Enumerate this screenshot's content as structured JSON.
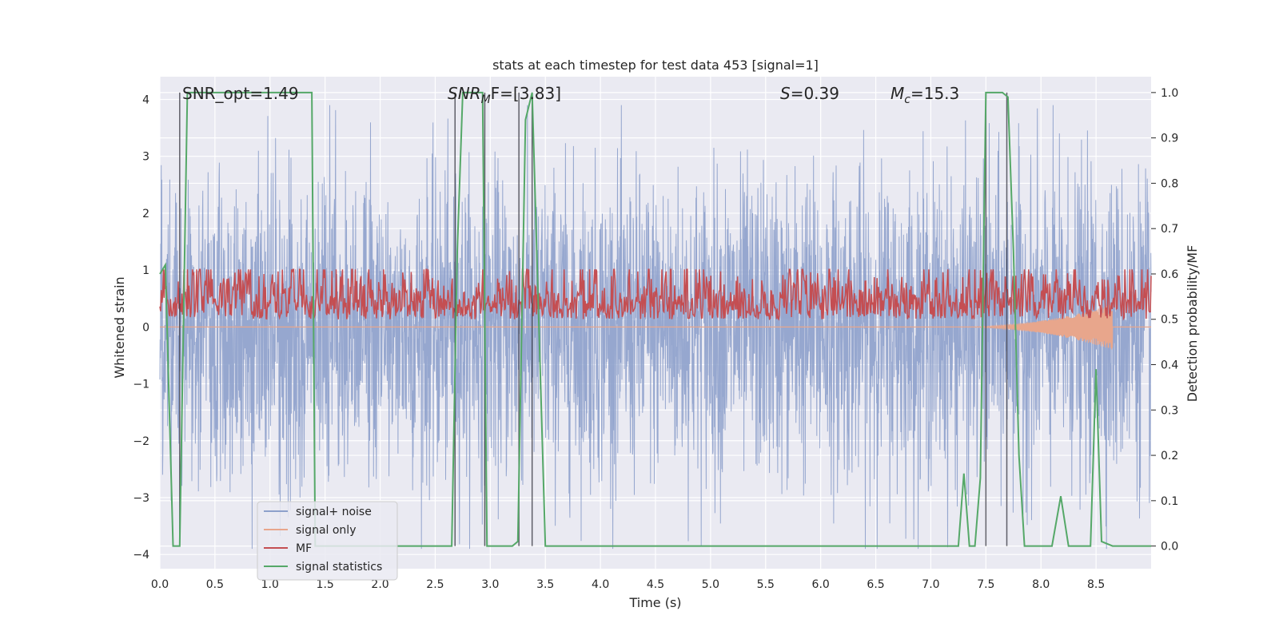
{
  "chart_data": {
    "type": "line",
    "title": "stats at each timestep for test data 453 [signal=1]",
    "xlabel": "Time (s)",
    "ylabel_left": "Whitened strain",
    "ylabel_right": "Detection probability/MF",
    "xlim": [
      0.0,
      9.0
    ],
    "ylim_left": [
      -4.25,
      4.4
    ],
    "ylim_right": [
      -0.05,
      1.035
    ],
    "x_ticks": [
      "0.0",
      "0.5",
      "1.0",
      "1.5",
      "2.0",
      "2.5",
      "3.0",
      "3.5",
      "4.0",
      "4.5",
      "5.0",
      "5.5",
      "6.0",
      "6.5",
      "7.0",
      "7.5",
      "8.0",
      "8.5"
    ],
    "x_tick_values": [
      0.0,
      0.5,
      1.0,
      1.5,
      2.0,
      2.5,
      3.0,
      3.5,
      4.0,
      4.5,
      5.0,
      5.5,
      6.0,
      6.5,
      7.0,
      7.5,
      8.0,
      8.5
    ],
    "y_left_ticks": [
      "4",
      "3",
      "2",
      "1",
      "0",
      "−1",
      "−2",
      "−3",
      "−4"
    ],
    "y_left_tick_values": [
      4,
      3,
      2,
      1,
      0,
      -1,
      -2,
      -3,
      -4
    ],
    "y_right_ticks": [
      "1.0",
      "0.9",
      "0.8",
      "0.7",
      "0.6",
      "0.5",
      "0.4",
      "0.3",
      "0.2",
      "0.1",
      "0.0"
    ],
    "y_right_tick_values": [
      1.0,
      0.9,
      0.8,
      0.7,
      0.6,
      0.5,
      0.4,
      0.3,
      0.2,
      0.1,
      0.0
    ],
    "grid": true,
    "legend_position": "bottom-left",
    "annotations": {
      "snr_opt": "SNR_opt=1.49",
      "snr_mf_italic": "SNR",
      "snr_mf_sub": "M",
      "snr_mf_rest": "F=[3.83]",
      "s_italic": "S",
      "s_rest": "=0.39",
      "mc_italic": "M",
      "mc_sub": "c",
      "mc_rest": "=15.3"
    },
    "series": [
      {
        "name": "signal+ noise",
        "color": "#8da0cb",
        "axis": "left",
        "style": "noise",
        "amplitude": 2.4
      },
      {
        "name": "signal only",
        "color": "#e8a68c",
        "axis": "left",
        "style": "chirp",
        "x_start": 7.2,
        "x_end": 8.65,
        "max_amplitude": 0.4
      },
      {
        "name": "MF",
        "color": "#c44e52",
        "axis": "right",
        "style": "noise",
        "baseline": 0.5,
        "amplitude": 0.12
      },
      {
        "name": "signal statistics",
        "color": "#55a868",
        "axis": "right",
        "x": [
          0.0,
          0.05,
          0.12,
          0.18,
          0.25,
          1.38,
          1.41,
          1.5,
          2.0,
          2.15,
          2.2,
          2.6,
          2.65,
          2.7,
          2.75,
          2.93,
          2.97,
          3.2,
          3.25,
          3.32,
          3.38,
          3.5,
          7.25,
          7.3,
          7.35,
          7.4,
          7.45,
          7.5,
          7.55,
          7.6,
          7.65,
          7.7,
          7.75,
          7.8,
          7.85,
          8.1,
          8.18,
          8.25,
          8.45,
          8.5,
          8.55,
          8.65,
          9.0
        ],
        "y": [
          0.6,
          0.62,
          0.0,
          0.0,
          1.0,
          1.0,
          0.0,
          0.0,
          0.0,
          0.0,
          0.0,
          0.0,
          0.0,
          0.65,
          1.0,
          1.0,
          0.0,
          0.0,
          0.01,
          0.94,
          1.0,
          0.0,
          0.0,
          0.16,
          0.0,
          0.0,
          0.15,
          1.0,
          1.0,
          1.0,
          1.0,
          0.99,
          0.65,
          0.2,
          0.0,
          0.0,
          0.11,
          0.0,
          0.0,
          0.39,
          0.01,
          0.0,
          0.0
        ]
      }
    ],
    "vertical_lines": [
      0.18,
      2.68,
      2.95,
      3.26,
      3.38,
      7.5,
      7.69
    ]
  },
  "legend": {
    "items": [
      {
        "label": "signal+ noise",
        "color": "#8da0cb"
      },
      {
        "label": "signal only",
        "color": "#e8a68c"
      },
      {
        "label": "MF",
        "color": "#c44e52"
      },
      {
        "label": "signal statistics",
        "color": "#55a868"
      }
    ]
  }
}
